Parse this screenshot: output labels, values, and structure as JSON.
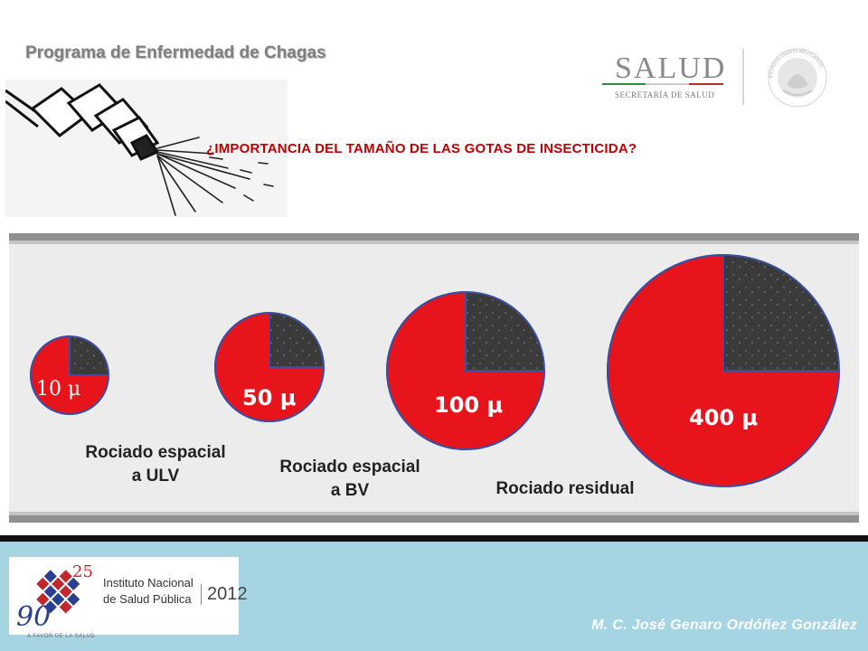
{
  "header": {
    "title": "Programa de Enfermedad de  Chagas",
    "question": "¿IMPORTANCIA DEL TAMAÑO DE LAS GOTAS DE INSECTICIDA?"
  },
  "salud_logo": {
    "word": "SALUD",
    "sub": "SECRETARÍA DE SALUD",
    "seal_text": "ESTADOS UNIDOS MEXICANOS"
  },
  "droplets": [
    {
      "label": "10 μ",
      "red_fraction": 0.75
    },
    {
      "label": "50 μ",
      "red_fraction": 0.75
    },
    {
      "label": "100 μ",
      "red_fraction": 0.75
    },
    {
      "label": "400 μ",
      "red_fraction": 0.75
    }
  ],
  "captions": {
    "ulv": "Rociado espacial\na ULV",
    "bv": "Rociado espacial\na BV",
    "residual": "Rociado residual"
  },
  "footer": {
    "insp_name": "Instituto Nacional\nde Salud Pública",
    "insp_year": "2012",
    "insp_anniversary": "25",
    "insp_motto": "A FAVOR DE LA SALUD",
    "author": "M. C. José Genaro Ordóñez González"
  },
  "colors": {
    "red": "#e8141c",
    "dark_speckle": "#3a3a3a",
    "footer_bg": "#a5d5e3",
    "title_gray": "#7f7f7f",
    "question_red": "#c00000"
  }
}
